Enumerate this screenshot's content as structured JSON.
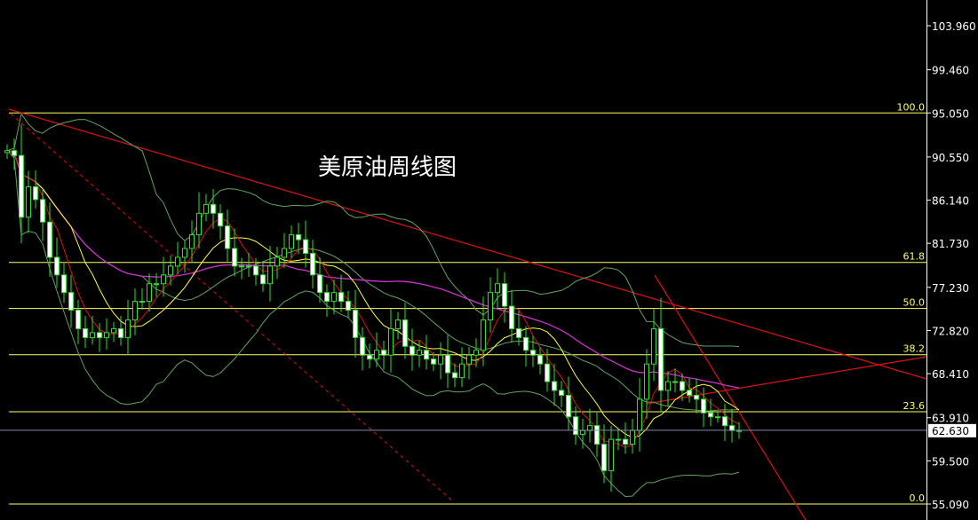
{
  "chart_data": {
    "type": "candlestick",
    "title": "美原油周线图",
    "ylim": [
      55.09,
      103.96
    ],
    "y_ticks": [
      "103.960",
      "99.460",
      "95.050",
      "90.550",
      "86.140",
      "81.730",
      "77.230",
      "72.820",
      "68.410",
      "63.910",
      "59.500",
      "55.090"
    ],
    "current_price": "62.630",
    "fib_levels": [
      {
        "label": "100.0",
        "value": 95.05
      },
      {
        "label": "61.8",
        "value": 79.78
      },
      {
        "label": "50.0",
        "value": 75.07
      },
      {
        "label": "38.2",
        "value": 70.35
      },
      {
        "label": "23.6",
        "value": 64.52
      },
      {
        "label": "0.0",
        "value": 55.09
      }
    ],
    "first_open": 91.0,
    "closes": [
      91.2,
      90.7,
      84.4,
      87.5,
      86.2,
      83.9,
      80.3,
      78.5,
      76.7,
      74.9,
      73.0,
      72.1,
      72.6,
      72.1,
      72.6,
      73.0,
      72.1,
      73.9,
      75.8,
      75.8,
      77.6,
      77.6,
      78.5,
      79.4,
      80.3,
      81.2,
      82.6,
      84.8,
      85.7,
      84.8,
      83.5,
      81.2,
      79.4,
      79.4,
      79.4,
      78.5,
      77.6,
      79.4,
      80.3,
      81.2,
      82.6,
      82.1,
      80.7,
      78.5,
      76.7,
      75.8,
      76.7,
      75.8,
      74.9,
      72.1,
      70.3,
      69.9,
      70.8,
      70.3,
      73.0,
      73.9,
      71.2,
      70.3,
      70.8,
      69.9,
      69.4,
      70.3,
      68.5,
      68.0,
      69.4,
      70.3,
      70.8,
      73.9,
      76.7,
      77.6,
      75.3,
      73.0,
      72.1,
      70.8,
      70.3,
      69.4,
      67.6,
      66.7,
      66.2,
      64.0,
      62.2,
      62.6,
      63.1,
      61.2,
      58.5,
      61.7,
      61.7,
      61.2,
      62.6,
      65.8,
      69.4,
      73.0,
      66.7,
      67.6,
      67.6,
      66.7,
      66.2,
      65.8,
      64.4,
      64.0,
      64.0,
      63.1,
      62.6,
      62.6
    ],
    "colors": {
      "candle_outline": "#33dd33",
      "bearish_fill": "#ffffff",
      "bullish_fill": "#000000",
      "fib_line": "#ffff66",
      "fib_label": "#ffff66",
      "trend_line": "#dd1111",
      "ma_short": "#dd1111",
      "ma_mid": "#ffff44",
      "ma_long": "#cc33cc",
      "bollinger": "#5fa55f",
      "axis_text": "#ffffff",
      "price_line": "#8888aa"
    }
  }
}
